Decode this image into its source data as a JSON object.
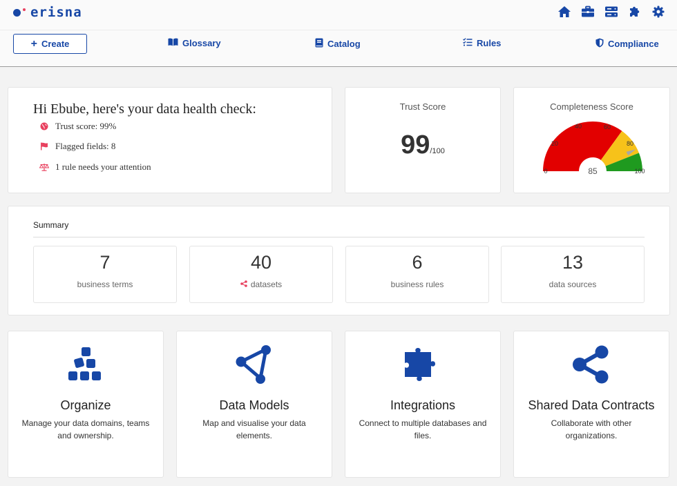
{
  "header": {
    "logo_text": "erisna",
    "icons": [
      "home-icon",
      "briefcase-icon",
      "server-icon",
      "puzzle-icon",
      "gear-icon"
    ]
  },
  "nav": {
    "create_label": "Create",
    "items": [
      {
        "label": "Glossary",
        "icon": "book-icon"
      },
      {
        "label": "Catalog",
        "icon": "catalog-book-icon"
      },
      {
        "label": "Rules",
        "icon": "checklist-icon"
      },
      {
        "label": "Compliance",
        "icon": "shield-icon"
      }
    ]
  },
  "health": {
    "title": "Hi Ebube, here's your data health check:",
    "lines": [
      {
        "text": "Trust score: 99%",
        "icon": "globe-icon"
      },
      {
        "text": "Flagged fields: 8",
        "icon": "flag-icon"
      },
      {
        "text": "1 rule needs your attention",
        "icon": "scale-icon"
      }
    ]
  },
  "trust": {
    "label": "Trust Score",
    "value": "99",
    "denominator": "/100"
  },
  "completeness": {
    "label": "Completeness Score",
    "value": 85,
    "ticks": [
      "0",
      "20",
      "40",
      "60",
      "80",
      "100"
    ],
    "colors": {
      "red": "#e20000",
      "yellow": "#f7c21a",
      "green": "#1f9a1f",
      "needle": "#a8a8a8"
    }
  },
  "summary": {
    "title": "Summary",
    "stats": [
      {
        "value": "7",
        "label": "business terms"
      },
      {
        "value": "40",
        "label": "datasets",
        "icon": "share-icon"
      },
      {
        "value": "6",
        "label": "business rules"
      },
      {
        "value": "13",
        "label": "data sources"
      }
    ]
  },
  "features": [
    {
      "title": "Organize",
      "desc": "Manage your data domains, teams and ownership.",
      "icon": "cubes-icon"
    },
    {
      "title": "Data Models",
      "desc": "Map and visualise your data elements.",
      "icon": "nodes-icon"
    },
    {
      "title": "Integrations",
      "desc": "Connect to multiple databases and files.",
      "icon": "puzzle-icon"
    },
    {
      "title": "Shared Data Contracts",
      "desc": "Collaborate with other organizations.",
      "icon": "share-icon"
    }
  ],
  "colors": {
    "brand": "#1747a6",
    "accent": "#e8405e"
  }
}
